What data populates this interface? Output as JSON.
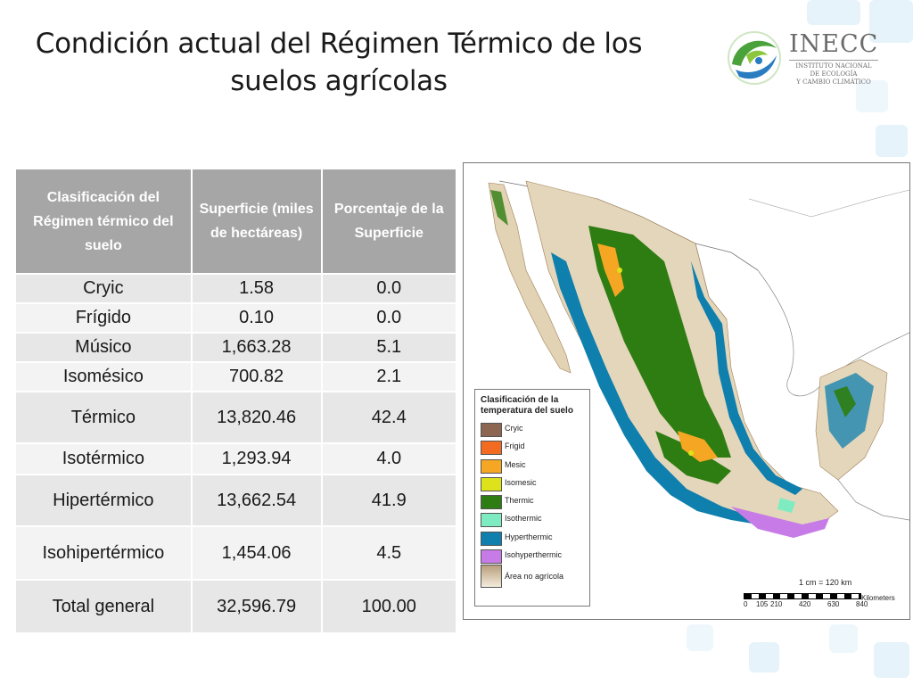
{
  "title": {
    "line1": "Condición actual del Régimen Térmico de los",
    "line2": "suelos agrícolas"
  },
  "logo": {
    "name": "INECC",
    "sub_line1": "INSTITUTO NACIONAL",
    "sub_line2": "DE ECOLOGÍA",
    "sub_line3": "Y CAMBIO CLIMÁTICO",
    "colors": {
      "green": "#4aa33a",
      "blue": "#2a7cc0",
      "text": "#6b6b6b"
    }
  },
  "table": {
    "headers": [
      "Clasificación del Régimen térmico del suelo",
      "Superficie (miles de hectáreas)",
      "Porcentaje de la Superficie"
    ],
    "rows": [
      [
        "Cryic",
        "1.58",
        "0.0"
      ],
      [
        "Frígido",
        "0.10",
        "0.0"
      ],
      [
        "Músico",
        "1,663.28",
        "5.1"
      ],
      [
        "Isomésico",
        "700.82",
        "2.1"
      ],
      [
        "Térmico",
        "13,820.46",
        "42.4"
      ],
      [
        "Isotérmico",
        "1,293.94",
        "4.0"
      ],
      [
        "Hipertérmico",
        "13,662.54",
        "41.9"
      ],
      [
        "Isohipertérmico",
        "1,454.06",
        "4.5"
      ],
      [
        "Total general",
        "32,596.79",
        "100.00"
      ]
    ]
  },
  "map": {
    "legend_title_line1": "Clasificación de la",
    "legend_title_line2": "temperatura del suelo",
    "legend": [
      {
        "label": "Cryic",
        "color": "#8c6650"
      },
      {
        "label": "Frigid",
        "color": "#f26b21"
      },
      {
        "label": "Mesic",
        "color": "#f5a623"
      },
      {
        "label": "Isomesic",
        "color": "#dde21a"
      },
      {
        "label": "Thermic",
        "color": "#2e7d12"
      },
      {
        "label": "Isothermic",
        "color": "#7eecc0"
      },
      {
        "label": "Hyperthermic",
        "color": "#0f7fad"
      },
      {
        "label": "Isohyperthermic",
        "color": "#c77be6"
      },
      {
        "label": "Área no agrícola",
        "color": "#d9c8a8"
      }
    ],
    "scale_text": "1 cm = 120 km",
    "scale_unit": "Kilometers",
    "scale_ticks": [
      "0",
      "105",
      "210",
      "420",
      "630",
      "840"
    ]
  }
}
